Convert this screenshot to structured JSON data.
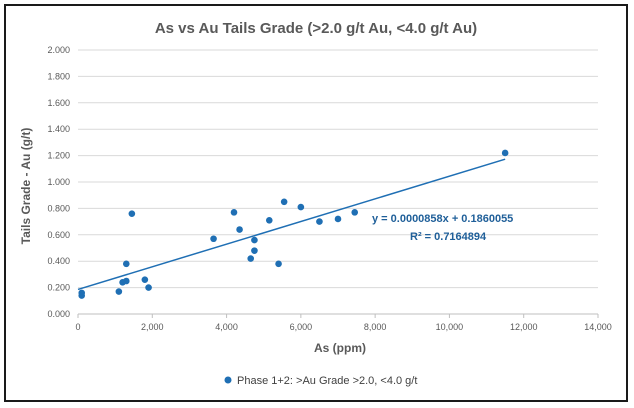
{
  "chart_data": {
    "type": "scatter",
    "title": "As vs Au Tails Grade (>2.0 g/t Au, <4.0 g/t Au)",
    "xlabel": "As (ppm)",
    "ylabel": "Tails Grade - Au (g/t)",
    "xlim": [
      0,
      14000
    ],
    "ylim": [
      0,
      2.0
    ],
    "x_ticks": [
      "0",
      "2,000",
      "4,000",
      "6,000",
      "8,000",
      "10,000",
      "12,000",
      "14,000"
    ],
    "y_ticks": [
      "0.000",
      "0.200",
      "0.400",
      "0.600",
      "0.800",
      "1.000",
      "1.200",
      "1.400",
      "1.600",
      "1.800",
      "2.000"
    ],
    "grid": "horizontal",
    "legend_position": "bottom",
    "series": [
      {
        "name": "Phase 1+2: >Au Grade >2.0, <4.0 g/t",
        "color": "#1f6fb4",
        "points": [
          [
            100,
            0.14
          ],
          [
            100,
            0.16
          ],
          [
            1100,
            0.17
          ],
          [
            1200,
            0.24
          ],
          [
            1300,
            0.25
          ],
          [
            1300,
            0.38
          ],
          [
            1450,
            0.76
          ],
          [
            1800,
            0.26
          ],
          [
            1900,
            0.2
          ],
          [
            3650,
            0.57
          ],
          [
            4200,
            0.77
          ],
          [
            4350,
            0.64
          ],
          [
            4650,
            0.42
          ],
          [
            4750,
            0.48
          ],
          [
            4750,
            0.56
          ],
          [
            5150,
            0.71
          ],
          [
            5400,
            0.38
          ],
          [
            5550,
            0.85
          ],
          [
            6000,
            0.81
          ],
          [
            6500,
            0.7
          ],
          [
            7000,
            0.72
          ],
          [
            7450,
            0.77
          ],
          [
            11500,
            1.22
          ]
        ]
      }
    ],
    "trendline": {
      "type": "linear",
      "slope": 8.58e-05,
      "intercept": 0.1860055,
      "x_range": [
        0,
        11500
      ],
      "color": "#1f6fb4",
      "equation_text": "y = 0.0000858x + 0.1860055",
      "r2_text": "R² = 0.7164894"
    }
  }
}
